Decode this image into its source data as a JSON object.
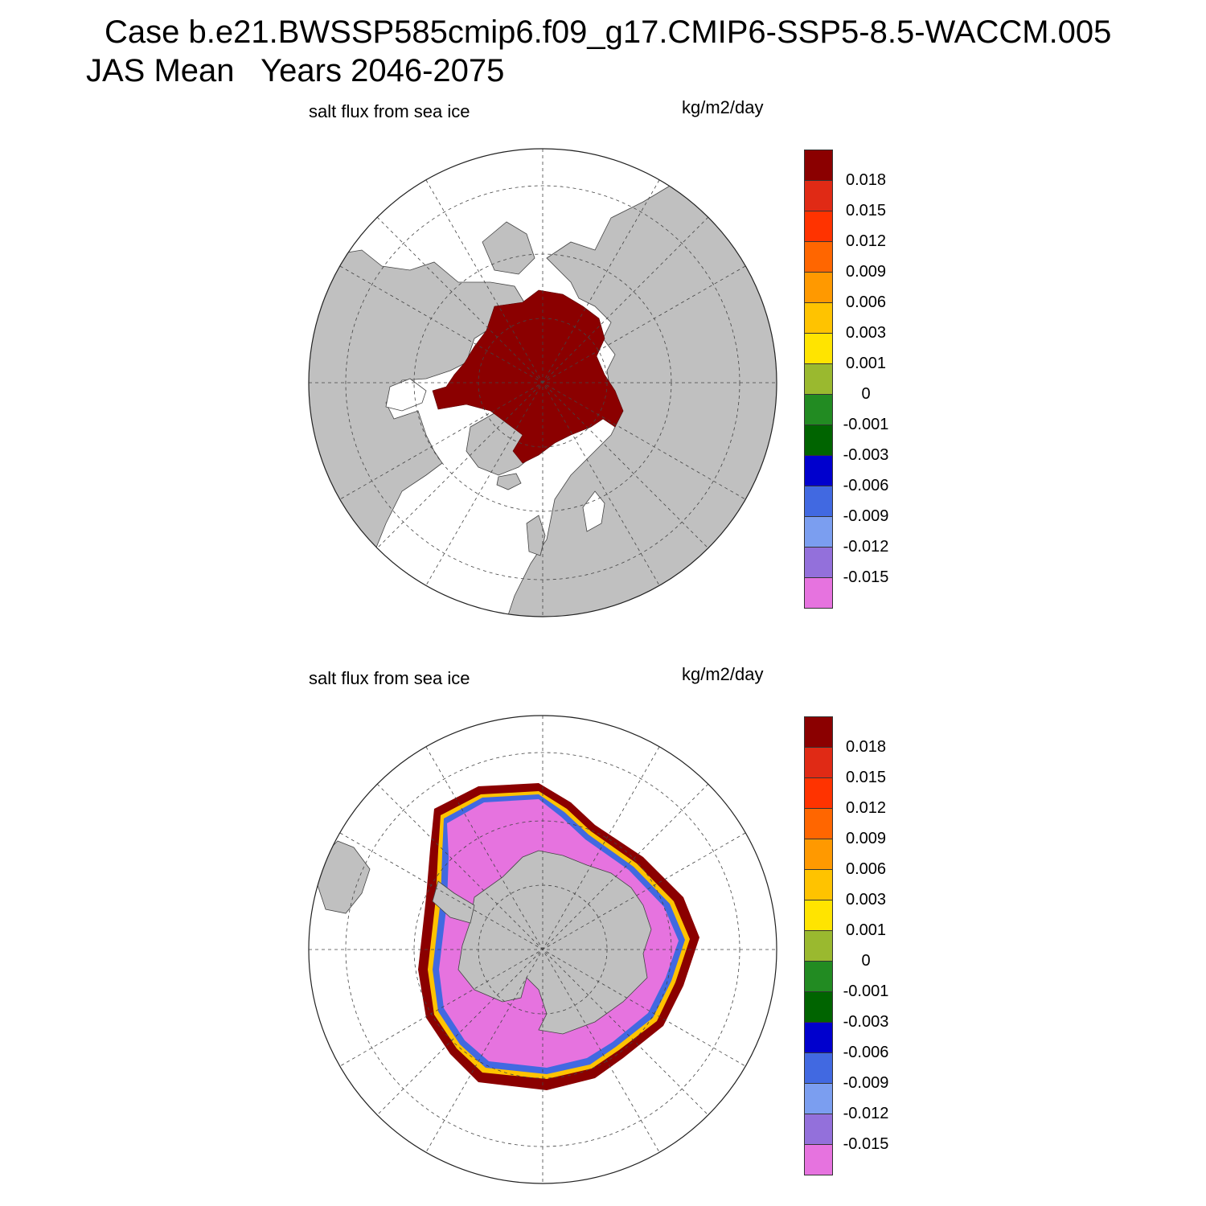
{
  "header": {
    "line1": "Case b.e21.BWSSP585cmip6.f09_g17.CMIP6-SSP5-8.5-WACCM.005",
    "line2": "JAS Mean   Years 2046-2075"
  },
  "colors": {
    "land": "#c0c0c0",
    "ocean_no_data": "#ffffff",
    "levels": [
      "#e673df",
      "#9370db",
      "#7b9ef0",
      "#4169e1",
      "#0000cd",
      "#006400",
      "#228b22",
      "#9ab92f",
      "#ffe400",
      "#ffc300",
      "#ff9900",
      "#ff6600",
      "#ff3300",
      "#e02a15",
      "#8b0000"
    ]
  },
  "colorbar": {
    "units": "kg/m2/day",
    "labels": [
      "-0.015",
      "-0.012",
      "-0.009",
      "-0.006",
      "-0.003",
      "-0.001",
      "0",
      "0.001",
      "0.003",
      "0.006",
      "0.009",
      "0.012",
      "0.015",
      "0.018"
    ]
  },
  "panels": [
    {
      "id": "north",
      "variable_label": "salt flux from sea ice",
      "units_label": "kg/m2/day",
      "hemisphere": "Northern",
      "projection": "polar stereographic",
      "dominant_value": "> 0.018 (Arctic ice pack)"
    },
    {
      "id": "south",
      "variable_label": "salt flux from sea ice",
      "units_label": "kg/m2/day",
      "hemisphere": "Southern",
      "projection": "polar stereographic",
      "dominant_value": "< -0.015 interior, > 0.018 at ice edge"
    }
  ]
}
